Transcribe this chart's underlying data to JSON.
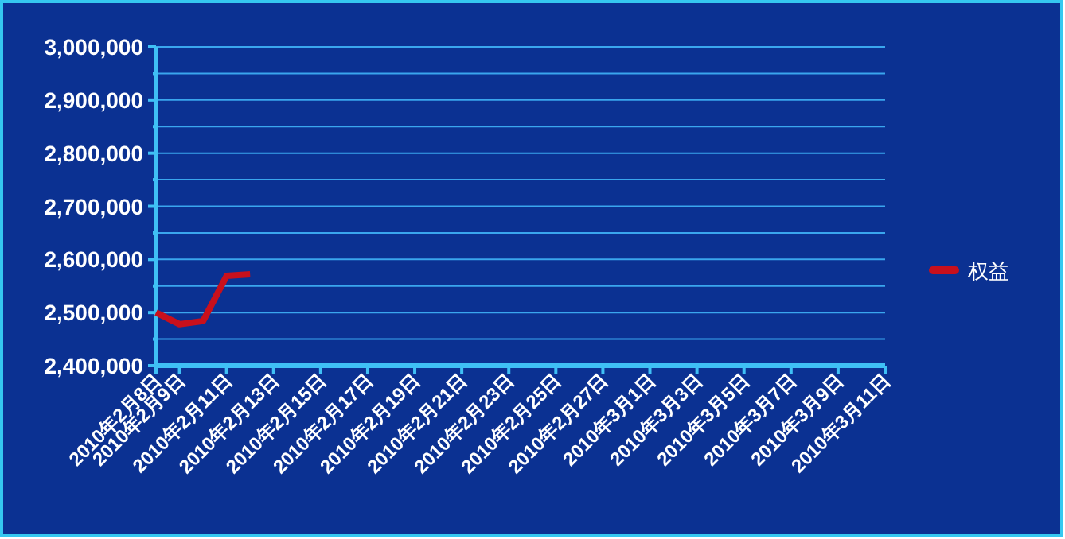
{
  "chart_data": {
    "type": "line",
    "x": [
      "2010-02-08",
      "2010-02-09",
      "2010-02-10",
      "2010-02-11",
      "2010-02-12"
    ],
    "series": [
      {
        "name": "权益",
        "color": "#c8101c",
        "values": [
          2500000,
          2478000,
          2484000,
          2569000,
          2572000
        ]
      }
    ],
    "xlim": [
      "2010-02-08",
      "2010-03-11"
    ],
    "xticks": [
      {
        "value": "2010-02-08",
        "label": "2010年2月8日"
      },
      {
        "value": "2010-02-09",
        "label": "2010年2月9日"
      },
      {
        "value": "2010-02-11",
        "label": "2010年2月11日"
      },
      {
        "value": "2010-02-13",
        "label": "2010年2月13日"
      },
      {
        "value": "2010-02-15",
        "label": "2010年2月15日"
      },
      {
        "value": "2010-02-17",
        "label": "2010年2月17日"
      },
      {
        "value": "2010-02-19",
        "label": "2010年2月19日"
      },
      {
        "value": "2010-02-21",
        "label": "2010年2月21日"
      },
      {
        "value": "2010-02-23",
        "label": "2010年2月23日"
      },
      {
        "value": "2010-02-25",
        "label": "2010年2月25日"
      },
      {
        "value": "2010-02-27",
        "label": "2010年2月27日"
      },
      {
        "value": "2010-03-01",
        "label": "2010年3月1日"
      },
      {
        "value": "2010-03-03",
        "label": "2010年3月3日"
      },
      {
        "value": "2010-03-05",
        "label": "2010年3月5日"
      },
      {
        "value": "2010-03-07",
        "label": "2010年3月7日"
      },
      {
        "value": "2010-03-09",
        "label": "2010年3月9日"
      },
      {
        "value": "2010-03-11",
        "label": "2010年3月11日"
      }
    ],
    "ylim": [
      2400000,
      3000000
    ],
    "yticks": [
      {
        "value": 2400000,
        "label": "2,400,000"
      },
      {
        "value": 2450000,
        "label": null
      },
      {
        "value": 2500000,
        "label": "2,500,000"
      },
      {
        "value": 2550000,
        "label": null
      },
      {
        "value": 2600000,
        "label": "2,600,000"
      },
      {
        "value": 2650000,
        "label": null
      },
      {
        "value": 2700000,
        "label": "2,700,000"
      },
      {
        "value": 2750000,
        "label": null
      },
      {
        "value": 2800000,
        "label": "2,800,000"
      },
      {
        "value": 2850000,
        "label": null
      },
      {
        "value": 2900000,
        "label": "2,900,000"
      },
      {
        "value": 2950000,
        "label": null
      },
      {
        "value": 3000000,
        "label": "3,000,000"
      }
    ],
    "grid": "y",
    "legend": "right",
    "marker": "none",
    "line_style": "solid"
  }
}
